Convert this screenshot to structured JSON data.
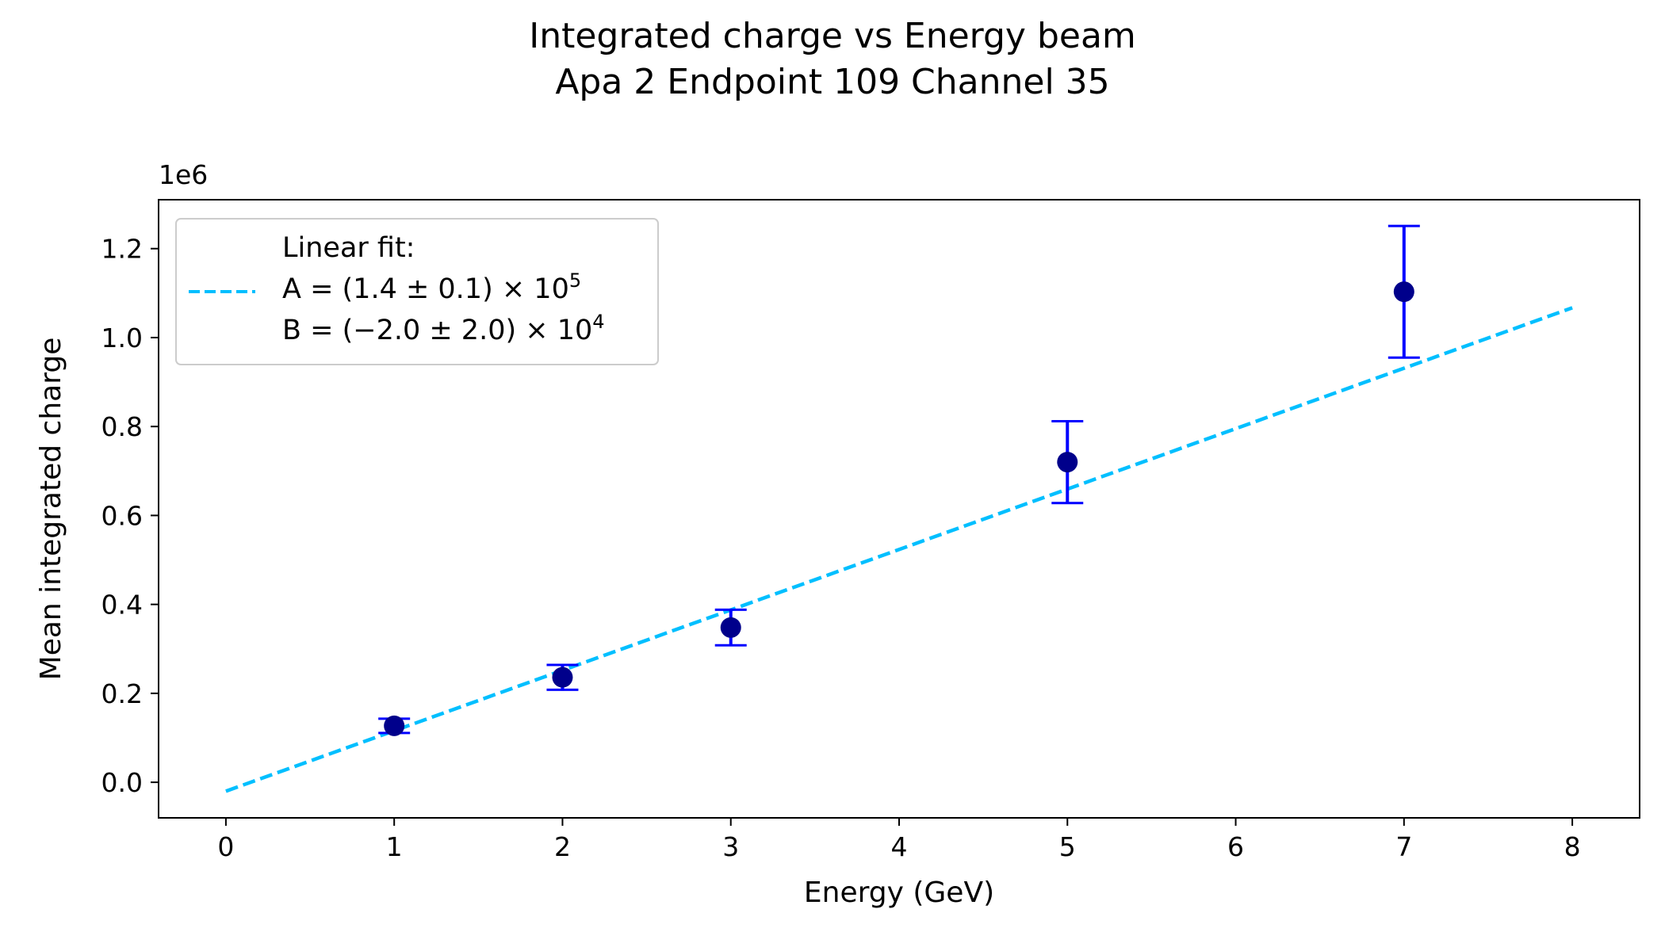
{
  "chart_data": {
    "type": "scatter",
    "title": "Integrated charge vs Energy beam",
    "subtitle": "Apa 2 Endpoint 109 Channel 35",
    "xlabel": "Energy (GeV)",
    "ylabel": "Mean integrated charge",
    "y_offset_text": "1e6",
    "xlim": [
      -0.4,
      8.4
    ],
    "ylim": [
      -0.08,
      1.31
    ],
    "xticks": [
      0,
      1,
      2,
      3,
      4,
      5,
      6,
      7,
      8
    ],
    "xtick_labels": [
      "0",
      "1",
      "2",
      "3",
      "4",
      "5",
      "6",
      "7",
      "8"
    ],
    "yticks": [
      0.0,
      0.2,
      0.4,
      0.6,
      0.8,
      1.0,
      1.2
    ],
    "ytick_labels": [
      "0.0",
      "0.2",
      "0.4",
      "0.6",
      "0.8",
      "1.0",
      "1.2"
    ],
    "grid": false,
    "legend": {
      "placement": "top-left",
      "lines": [
        "Linear fit:",
        "A = (1.4 ± 0.1) × 10",
        "B = (−2.0 ± 2.0) × 10"
      ],
      "exponents": [
        "5",
        "4"
      ]
    },
    "series": [
      {
        "type": "scatter-errorbar",
        "marker_color": "#00008b",
        "errorbar_color": "#0000ff",
        "points": [
          {
            "x": 1,
            "y": 0.127,
            "yerr": 0.016
          },
          {
            "x": 2,
            "y": 0.236,
            "yerr": 0.028
          },
          {
            "x": 3,
            "y": 0.348,
            "yerr": 0.04
          },
          {
            "x": 5,
            "y": 0.72,
            "yerr": 0.092
          },
          {
            "x": 7,
            "y": 1.103,
            "yerr": 0.148
          }
        ]
      },
      {
        "type": "line",
        "style": "dashed",
        "color": "#00bfff",
        "x": [
          0,
          8
        ],
        "y": [
          -0.02,
          1.067
        ]
      }
    ]
  }
}
